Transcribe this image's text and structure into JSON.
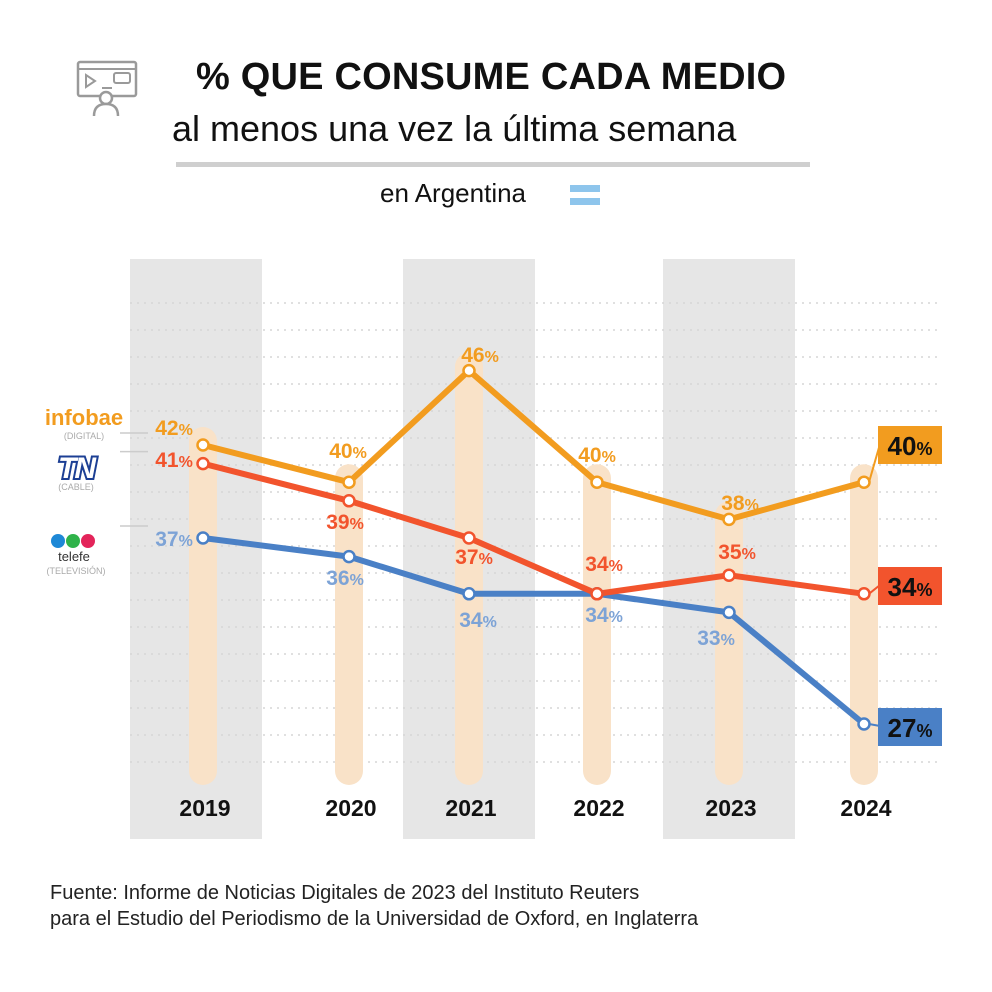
{
  "header": {
    "title": "% QUE CONSUME CADA MEDIO",
    "subtitle": "al menos una vez la última semana",
    "region": "en Argentina"
  },
  "source": {
    "line1": "Fuente: Informe de Noticias Digitales de 2023 del Instituto Reuters",
    "line2": "para el Estudio del Periodismo de la Universidad de Oxford, en Inglaterra"
  },
  "legend": {
    "infobae": {
      "name": "infobae",
      "sub": "(DIGITAL)"
    },
    "tn": {
      "name": "TN",
      "sub": "(CABLE)"
    },
    "telefe": {
      "name": "telefe",
      "sub": "(TELEVISIÓN)"
    }
  },
  "colors": {
    "infobae": "#f29c1f",
    "tn": "#f2542d",
    "telefe": "#4a80c6",
    "telefe_label": "#7da3d6",
    "band": "#e6e6e6",
    "pillar": "#f9e2c8"
  },
  "chart_data": {
    "type": "line",
    "x": [
      "2019",
      "2020",
      "2021",
      "2022",
      "2023",
      "2024"
    ],
    "unit": "%",
    "ylim": [
      20,
      50
    ],
    "series": [
      {
        "name": "infobae",
        "values": [
          42,
          40,
          46,
          40,
          38,
          40
        ]
      },
      {
        "name": "TN",
        "values": [
          41,
          39,
          37,
          34,
          35,
          34
        ]
      },
      {
        "name": "telefe",
        "values": [
          37,
          36,
          34,
          34,
          33,
          27
        ]
      }
    ]
  }
}
